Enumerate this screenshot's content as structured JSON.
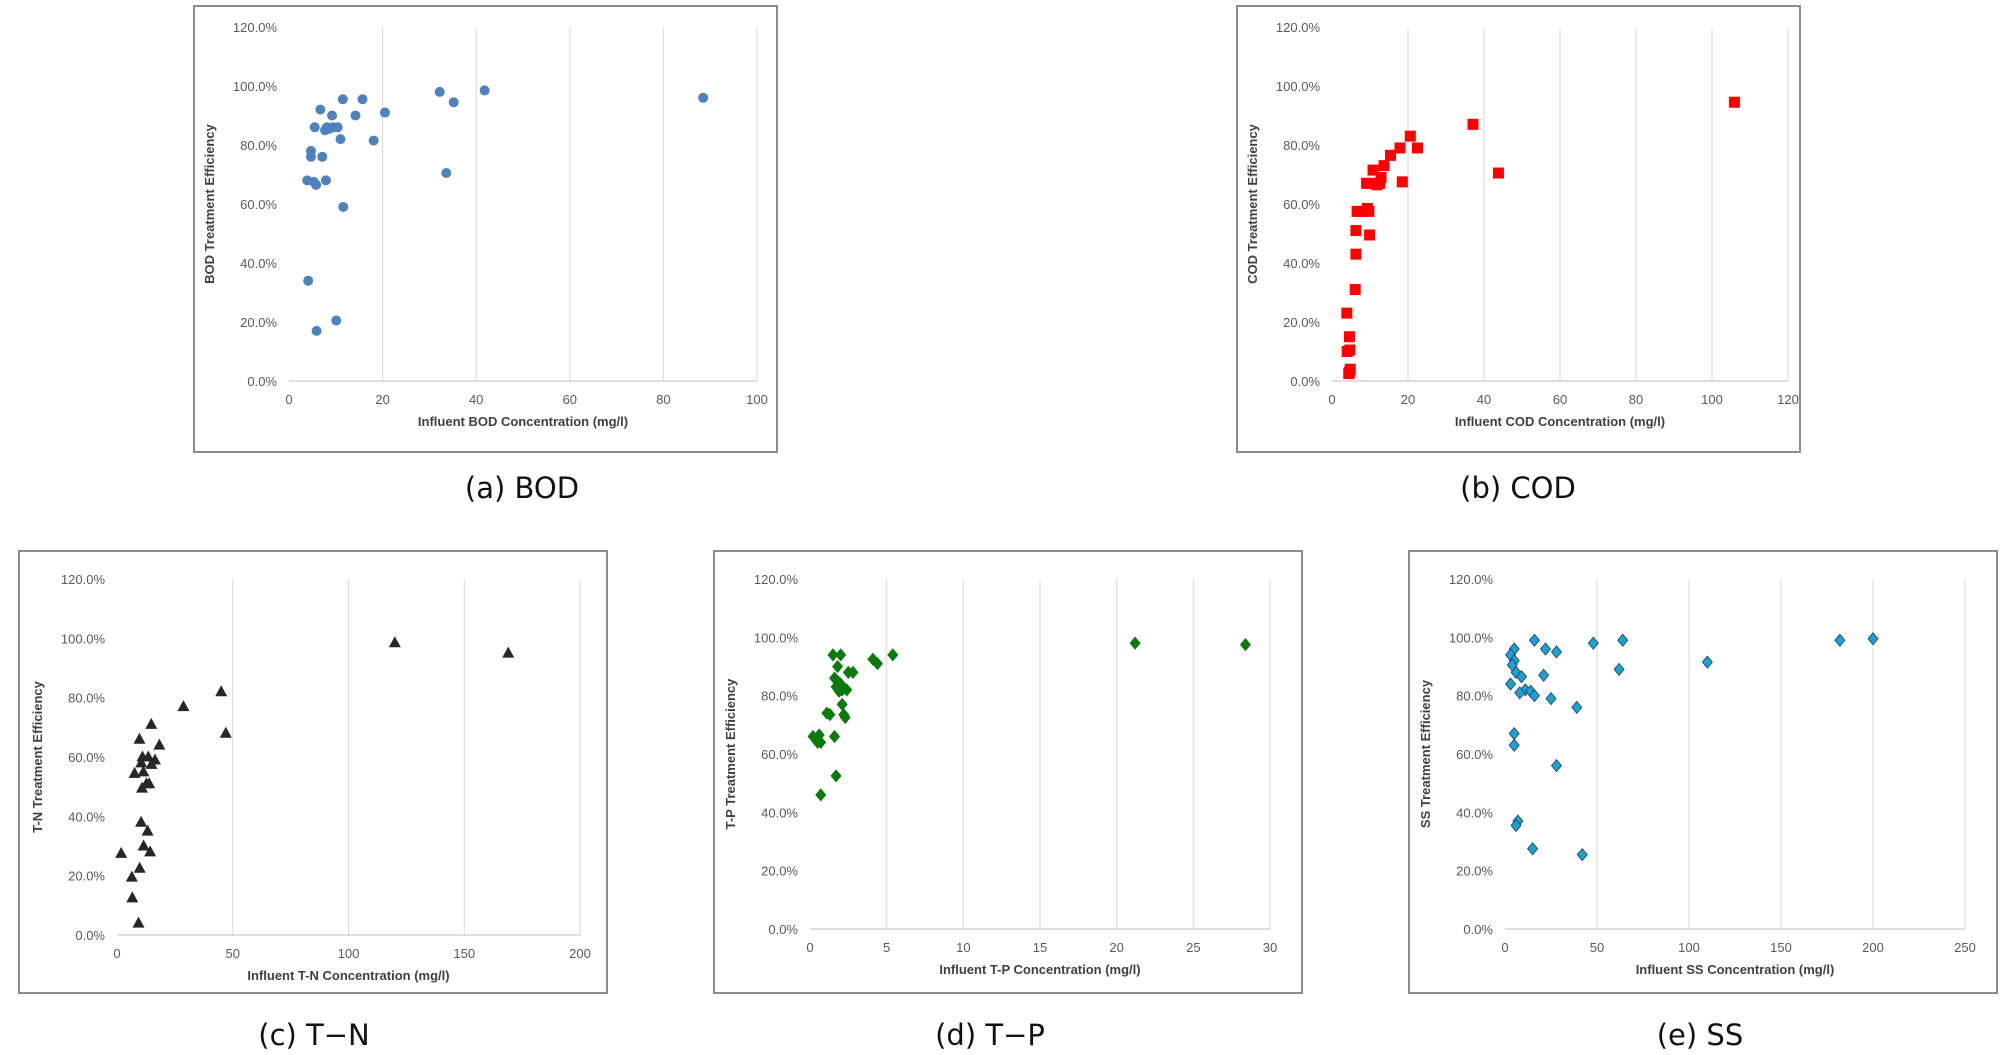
{
  "captions": [
    "(a) BOD",
    "(b) COD",
    "(c) T−N",
    "(d) T−P",
    "(e) SS"
  ],
  "chart_data": [
    {
      "type": "scatter",
      "xlabel": "Influent BOD Concentration (mg/l)",
      "ylabel": "BOD Treatment Efficiency",
      "xlim": [
        0,
        100
      ],
      "ylim": [
        0,
        120
      ],
      "xticks": [
        "0",
        "20",
        "40",
        "60",
        "80",
        "100"
      ],
      "yticks": [
        "0.0%",
        "20.0%",
        "40.0%",
        "60.0%",
        "80.0%",
        "100.0%",
        "120.0%"
      ],
      "grid": "vertical",
      "marker": "circle",
      "color": "#4f81bd",
      "x": [
        6.7,
        5.5,
        9.2,
        11.5,
        15.7,
        20.5,
        7.7,
        8.1,
        8.6,
        9.4,
        14.2,
        10.4,
        11.0,
        18.1,
        32.2,
        41.8,
        35.2,
        88.5,
        4.7,
        4.7,
        7.1,
        3.9,
        5.3,
        5.8,
        7.9,
        33.6,
        11.6,
        4.1,
        5.9,
        10.1
      ],
      "y": [
        92,
        86,
        90,
        95.5,
        95.5,
        91,
        85,
        86,
        85.5,
        86,
        90,
        86,
        82,
        81.5,
        98,
        98.5,
        94.5,
        96,
        78,
        76,
        76,
        68,
        67.5,
        66.5,
        68,
        70.5,
        59,
        34,
        17,
        20.5
      ]
    },
    {
      "type": "scatter",
      "xlabel": "Influent COD Concentration (mg/l)",
      "ylabel": "COD Treatment Efficiency",
      "xlim": [
        0,
        120
      ],
      "ylim": [
        0,
        120
      ],
      "xticks": [
        "0",
        "20",
        "40",
        "60",
        "80",
        "100",
        "120"
      ],
      "yticks": [
        "0.0%",
        "20.0%",
        "40.0%",
        "60.0%",
        "80.0%",
        "100.0%",
        "120.0%"
      ],
      "grid": "vertical",
      "marker": "square",
      "color": "#ff0000",
      "x": [
        105.9,
        37.1,
        20.6,
        22.5,
        17.9,
        15.4,
        13.7,
        10.8,
        12.9,
        9.8,
        11.8,
        12.6,
        9.1,
        18.5,
        43.8,
        8.0,
        9.3,
        9.7,
        6.3,
        9.9,
        6.3,
        6.1,
        6.6,
        3.9,
        4.6,
        4.7,
        4.0,
        4.8,
        4.6,
        4.4
      ],
      "y": [
        94.5,
        87,
        83,
        79,
        79,
        76.5,
        73,
        71.5,
        69,
        67,
        66.5,
        67,
        67,
        67.5,
        70.5,
        57.5,
        58.5,
        57.5,
        51,
        49.5,
        43,
        31,
        57.5,
        23,
        15,
        10.5,
        10,
        4,
        3,
        2.5
      ]
    },
    {
      "type": "scatter",
      "xlabel": "Influent T-N Concentration (mg/l)",
      "ylabel": "T-N Treatment Efficiency",
      "xlim": [
        0,
        200
      ],
      "ylim": [
        0,
        120
      ],
      "xticks": [
        "0",
        "50",
        "100",
        "150",
        "200"
      ],
      "yticks": [
        "0.0%",
        "20.0%",
        "40.0%",
        "60.0%",
        "80.0%",
        "100.0%",
        "120.0%"
      ],
      "grid": "vertical",
      "marker": "triangle",
      "color": "#262626",
      "x": [
        120,
        169,
        45,
        47,
        28.7,
        14.8,
        18.3,
        9.7,
        16.4,
        7.6,
        11,
        13.5,
        14.9,
        10.5,
        11.4,
        12.7,
        10.8,
        13.9,
        10.4,
        13.2,
        11.5,
        14.3,
        1.8,
        6.4,
        9.8,
        6.6,
        9.3
      ],
      "y": [
        98.5,
        95,
        82,
        68,
        77,
        71,
        64,
        66,
        59,
        54.5,
        60,
        60,
        57.5,
        58,
        55,
        51,
        49.5,
        51,
        38,
        35,
        30,
        28,
        27.5,
        19.5,
        22.5,
        12.5,
        4
      ]
    },
    {
      "type": "scatter",
      "xlabel": "Influent T-P Concentration (mg/l)",
      "ylabel": "T-P Treatment Efficiency",
      "xlim": [
        0,
        30
      ],
      "ylim": [
        0,
        120
      ],
      "xticks": [
        "0",
        "5",
        "10",
        "15",
        "20",
        "25",
        "30"
      ],
      "yticks": [
        "0.0%",
        "20.0%",
        "40.0%",
        "60.0%",
        "80.0%",
        "100.0%",
        "120.0%"
      ],
      "grid": "vertical",
      "marker": "diamond",
      "color": "#0a7a0a",
      "x": [
        1.5,
        2.0,
        5.4,
        4.1,
        4.4,
        1.8,
        2.5,
        2.8,
        1.6,
        1.8,
        2.0,
        1.7,
        2.4,
        2.1,
        1.9,
        2.1,
        1.1,
        1.3,
        2.2,
        2.3,
        0.2,
        0.6,
        0.5,
        1.6,
        0.7,
        1.7,
        0.7,
        21.2,
        28.4
      ],
      "y": [
        94,
        94,
        94,
        92.5,
        91,
        90,
        88,
        88,
        86,
        85,
        84,
        83,
        82,
        82,
        81.5,
        77,
        74,
        73.5,
        73.5,
        72.5,
        66,
        66.5,
        64,
        66,
        46,
        52.5,
        64,
        98,
        97.5
      ]
    },
    {
      "type": "scatter",
      "xlabel": "Influent SS Concentration (mg/l)",
      "ylabel": "SS Treatment Efficiency",
      "xlim": [
        0,
        250
      ],
      "ylim": [
        0,
        120
      ],
      "xticks": [
        "0",
        "50",
        "100",
        "150",
        "200",
        "250"
      ],
      "yticks": [
        "0.0%",
        "20.0%",
        "40.0%",
        "60.0%",
        "80.0%",
        "100.0%",
        "120.0%"
      ],
      "grid": "vertical",
      "marker": "diamond",
      "color": "#1ba1d6",
      "x": [
        200,
        182,
        64,
        48,
        16,
        110,
        62,
        22,
        28,
        5,
        3,
        5,
        4,
        6,
        9,
        21,
        3,
        11,
        8,
        14,
        16,
        25,
        39,
        28,
        5,
        5,
        7,
        6,
        15,
        42
      ],
      "y": [
        99.5,
        99,
        99,
        98,
        99,
        91.5,
        89,
        96,
        95,
        96,
        94,
        92,
        90.5,
        88,
        86.5,
        87,
        84,
        82,
        81,
        81.5,
        80,
        79,
        76,
        56,
        67,
        63,
        37,
        35.5,
        27.5,
        25.5
      ]
    }
  ]
}
